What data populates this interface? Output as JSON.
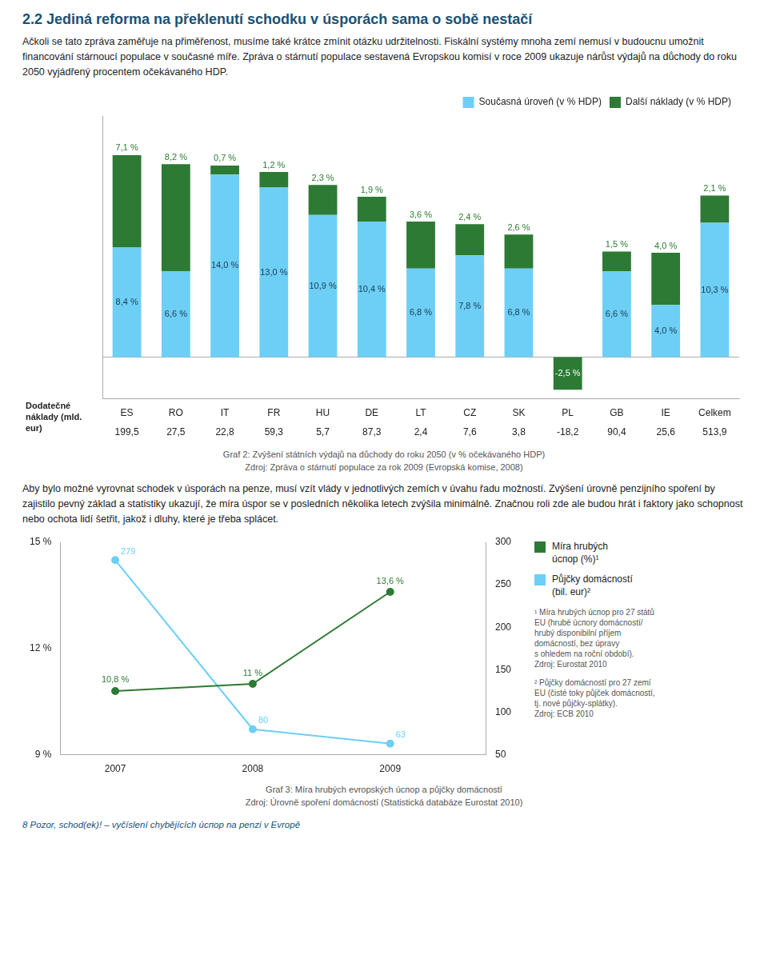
{
  "title": "2.2 Jediná reforma na překlenutí schodku v úsporách sama o sobě nestačí",
  "chart_data": [
    {
      "type": "bar",
      "text": "Ačkoli se tato zpráva zaměřuje na přiměřenost, musíme také krátce zmínit otázku udržitelnosti. Fiskální systémy mnoha zemí nemusí v budoucnu umožnit financování stárnoucí populace v současné míře. Zpráva o stárnutí populace sestavená Evropskou komisí v roce 2009 ukazuje nárůst výdajů na důchody do roku 2050 vyjádřený procentem očekávaného HDP.",
      "title": "Graf 2: Zvýšení státních výdajů na důchody do roku 2050 (v % očekávaného HDP)",
      "subtitle": "Zdroj: Zpráva o stárnutí populace za rok 2009 (Evropská komise, 2008)",
      "categories": [
        "ES",
        "RO",
        "IT",
        "FR",
        "HU",
        "DE",
        "LT",
        "CZ",
        "SK",
        "PL",
        "GB",
        "IE",
        "Celkem"
      ],
      "series": [
        {
          "name": "Současná úroveň (v % HDP)",
          "color": "#6dcff6",
          "values": [
            8.4,
            6.6,
            14.0,
            13.0,
            10.9,
            10.4,
            6.8,
            7.8,
            6.8,
            0.0,
            6.6,
            4.0,
            10.3
          ],
          "value_labels": [
            "8,4 %",
            "6,6 %",
            "14,0 %",
            "13,0 %",
            "10,9 %",
            "10,4 %",
            "6,8 %",
            "7,8 %",
            "6,8 %",
            null,
            "6,6 %",
            "4,0 %",
            "10,3 %"
          ]
        },
        {
          "name": "Další náklady (v % HDP)",
          "color": "#2d7a34",
          "values": [
            7.1,
            8.2,
            0.7,
            1.2,
            2.3,
            1.9,
            3.6,
            2.4,
            2.6,
            -2.5,
            1.5,
            4.0,
            2.1
          ],
          "value_labels": [
            "7,1 %",
            "8,2 %",
            "0,7 %",
            "1,2 %",
            "2,3 %",
            "1,9 %",
            "3,6 %",
            "2,4 %",
            "2,6 %",
            "-2,5 %",
            "1,5 %",
            "4,0 %",
            "2,1 %"
          ]
        }
      ],
      "stacked": true,
      "ylim": [
        -3.2,
        18.5
      ],
      "yticks": [],
      "tick_labels": "x",
      "grid": false,
      "legend": "upper right",
      "data_labels": true,
      "additional_costs": {
        "label": "Dodatečné náklady (mld. eur)",
        "values": [
          199.5,
          27.5,
          22.8,
          59.3,
          5.7,
          87.3,
          2.4,
          7.6,
          3.8,
          -18.2,
          90.4,
          25.6,
          513.9
        ],
        "value_labels": [
          "199,5",
          "27,5",
          "22,8",
          "59,3",
          "5,7",
          "87,3",
          "2,4",
          "7,6",
          "3,8",
          "-18,2",
          "90,4",
          "25,6",
          "513,9"
        ]
      }
    },
    {
      "type": "line",
      "text": "Aby bylo možné vyrovnat schodek v úsporách na penze, musí vzít vlády v jednotlivých zemích v úvahu řadu možností. Zvýšení úrovně penzijního spoření by zajistilo pevný základ a statistiky ukazují, že míra úspor se v posledních několika letech zvýšila minimálně. Značnou roli zde ale budou hrát i faktory jako schopnost nebo ochota lidí šetřit, jakož i dluhy, které je třeba splácet.",
      "title": "Graf 3: Míra hrubých evropských úспор a půjčky domácností",
      "subtitle": "Zdroj: Úrovně spoření domácností (Statistická databáze Eurostat 2010)",
      "x": [
        2007,
        2008,
        2009
      ],
      "xlim": [
        2006.6,
        2009.7
      ],
      "xticks": [
        2007,
        2008,
        2009
      ],
      "ylim": [
        9,
        15
      ],
      "yticks": [
        {
          "value": 9,
          "label": "9 %"
        },
        {
          "value": 12,
          "label": "12 %"
        },
        {
          "value": 15,
          "label": "15 %"
        }
      ],
      "y2lim": [
        50,
        300
      ],
      "y2ticks": [
        50,
        100,
        150,
        200,
        250,
        300
      ],
      "series": [
        {
          "name": "Míra hrubých\núспор (%)¹",
          "color": "#2d7a34",
          "marker": "circle",
          "values": [
            10.8,
            11.0,
            13.6
          ],
          "value_labels": [
            "10,8 %",
            "11 %",
            "13,6 %"
          ]
        },
        {
          "name": "Půjčky domácností\n(bil. eur)²",
          "color": "#6dcff6",
          "marker": "circle",
          "axis": "y2",
          "values": [
            279,
            80,
            63
          ]
        }
      ],
      "grid": false,
      "legend": "right",
      "data_labels": true,
      "annotations": [
        "¹ Míra hrubých úспор pro 27 států\nEU (hrubé úспоry domácností/\nhrubý disponibilní příjem\ndomácností, bez úpravy\ns ohledem na roční období).\nZdroj: Eurostat 2010",
        "² Půjčky domácností pro 27 zemí\nEU (čisté toky půjček domácností,\ntj. nové půjčky-splátky).\nZdroj: ECB 2010"
      ]
    }
  ],
  "footer": "8 Pozor, schod(ek)! – vyčíslení chybějících úспор na penzi v Evropě"
}
